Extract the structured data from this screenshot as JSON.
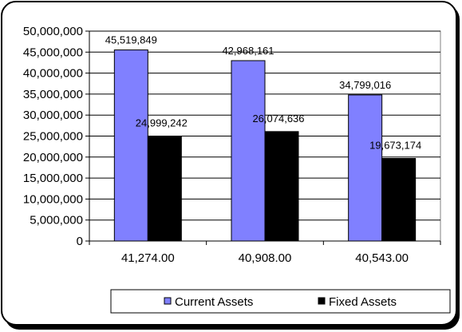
{
  "chart_data": {
    "type": "bar",
    "categories": [
      "41,274.00",
      "40,908.00",
      "40,543.00"
    ],
    "series": [
      {
        "name": "Current Assets",
        "values": [
          45519849,
          42968161,
          34799016
        ],
        "labels": [
          "45,519,849",
          "42,968,161",
          "34,799,016"
        ],
        "color": "#8080ff"
      },
      {
        "name": "Fixed Assets",
        "values": [
          24999242,
          26074636,
          19673174
        ],
        "labels": [
          "24,999,242",
          "26,074,636",
          "19,673,174"
        ],
        "color": "#000000"
      }
    ],
    "yticks": [
      0,
      5000000,
      10000000,
      15000000,
      20000000,
      25000000,
      30000000,
      35000000,
      40000000,
      45000000,
      50000000
    ],
    "ytick_labels": [
      "0",
      "5,000,000",
      "10,000,000",
      "15,000,000",
      "20,000,000",
      "25,000,000",
      "30,000,000",
      "35,000,000",
      "40,000,000",
      "45,000,000",
      "50,000,000"
    ],
    "ylim": [
      0,
      50000000
    ],
    "grid": true,
    "legend_position": "bottom-right",
    "title": "",
    "xlabel": "",
    "ylabel": ""
  }
}
